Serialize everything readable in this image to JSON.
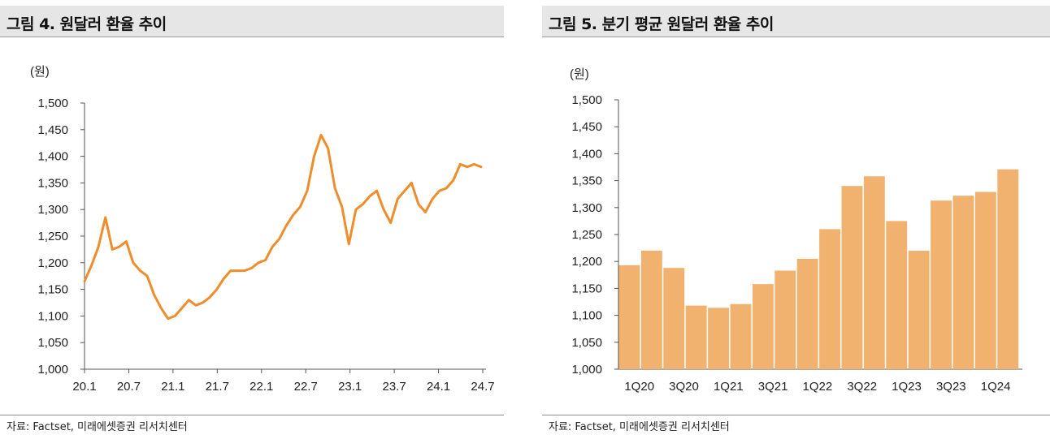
{
  "charts": [
    {
      "title": "그림 4. 원달러 환율 추이",
      "source": "자료: Factset, 미래에셋증권 리서치센터",
      "chart_data": {
        "type": "line",
        "unit_label": "(원)",
        "ylim": [
          1000,
          1500
        ],
        "y_ticks": [
          "1,000",
          "1,050",
          "1,100",
          "1,150",
          "1,200",
          "1,250",
          "1,300",
          "1,350",
          "1,400",
          "1,450",
          "1,500"
        ],
        "x_ticks": [
          "20.1",
          "20.7",
          "21.1",
          "21.7",
          "22.1",
          "22.7",
          "23.1",
          "23.7",
          "24.1",
          "24.7"
        ],
        "series": [
          {
            "color": "#ef8c2b",
            "x": [
              "2020-01",
              "2020-02",
              "2020-03a",
              "2020-03b",
              "2020-04",
              "2020-05",
              "2020-06",
              "2020-07",
              "2020-08",
              "2020-09",
              "2020-10",
              "2020-11",
              "2020-12",
              "2021-01",
              "2021-02",
              "2021-03",
              "2021-04",
              "2021-05",
              "2021-06",
              "2021-07",
              "2021-08",
              "2021-09",
              "2021-10",
              "2021-11",
              "2021-12",
              "2022-01",
              "2022-02",
              "2022-03",
              "2022-04",
              "2022-05",
              "2022-06",
              "2022-07",
              "2022-08",
              "2022-09",
              "2022-10a",
              "2022-10b",
              "2022-11",
              "2022-12",
              "2023-01",
              "2023-02",
              "2023-03",
              "2023-04",
              "2023-05",
              "2023-06",
              "2023-07",
              "2023-08",
              "2023-09",
              "2023-10",
              "2023-11",
              "2023-12",
              "2024-01",
              "2024-02",
              "2024-03",
              "2024-04",
              "2024-05",
              "2024-06",
              "2024-07",
              "2024-08"
            ],
            "values": [
              1165,
              1195,
              1230,
              1285,
              1225,
              1230,
              1240,
              1200,
              1185,
              1175,
              1140,
              1115,
              1095,
              1100,
              1115,
              1130,
              1120,
              1125,
              1135,
              1150,
              1170,
              1185,
              1185,
              1185,
              1190,
              1200,
              1205,
              1230,
              1245,
              1270,
              1290,
              1305,
              1335,
              1400,
              1440,
              1415,
              1340,
              1305,
              1235,
              1300,
              1310,
              1325,
              1335,
              1300,
              1275,
              1320,
              1335,
              1350,
              1310,
              1295,
              1320,
              1335,
              1340,
              1355,
              1385,
              1380,
              1385,
              1380
            ]
          }
        ]
      }
    },
    {
      "title": "그림 5. 분기 평균 원달러 환율 추이",
      "source": "자료: Factset, 미래에셋증권 리서치센터",
      "chart_data": {
        "type": "bar",
        "unit_label": "(원)",
        "ylim": [
          1000,
          1500
        ],
        "y_ticks": [
          "1,000",
          "1,050",
          "1,100",
          "1,150",
          "1,200",
          "1,250",
          "1,300",
          "1,350",
          "1,400",
          "1,450",
          "1,500"
        ],
        "categories": [
          "1Q20",
          "2Q20",
          "3Q20",
          "4Q20",
          "1Q21",
          "2Q21",
          "3Q21",
          "4Q21",
          "1Q22",
          "2Q22",
          "3Q22",
          "4Q22",
          "1Q23",
          "2Q23",
          "3Q23",
          "4Q23",
          "1Q24",
          "2Q24"
        ],
        "x_tick_labels": [
          "1Q20",
          "",
          "3Q20",
          "",
          "1Q21",
          "",
          "3Q21",
          "",
          "1Q22",
          "",
          "3Q22",
          "",
          "1Q23",
          "",
          "3Q23",
          "",
          "1Q24",
          ""
        ],
        "values": [
          1193,
          1220,
          1188,
          1118,
          1114,
          1121,
          1158,
          1183,
          1205,
          1260,
          1340,
          1358,
          1275,
          1220,
          1313,
          1322,
          1329,
          1371
        ],
        "bar_color": "#f0b26e"
      }
    }
  ]
}
